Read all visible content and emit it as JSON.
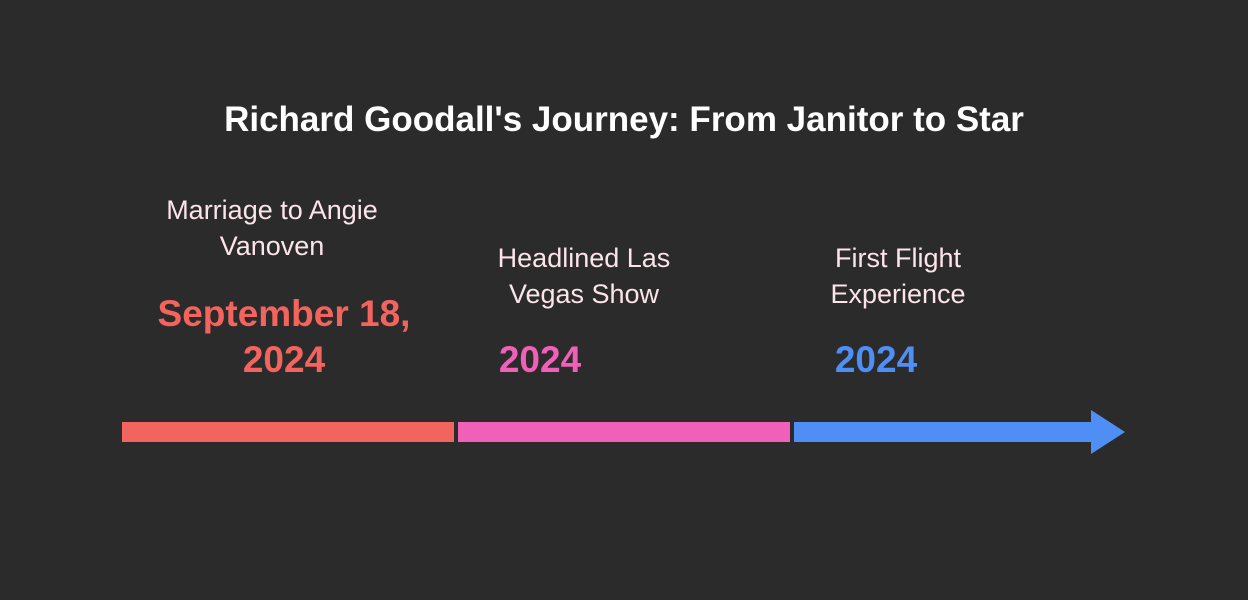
{
  "title": "Richard Goodall's Journey: From Janitor to Star",
  "events": [
    {
      "label": "Marriage to Angie Vanoven",
      "date": "September 18, 2024",
      "color": "#f4645f"
    },
    {
      "label": "Headlined Las Vegas Show",
      "date": "2024",
      "color": "#f060b8"
    },
    {
      "label": "First Flight Experience",
      "date": "2024",
      "color": "#4f8ef5"
    }
  ]
}
